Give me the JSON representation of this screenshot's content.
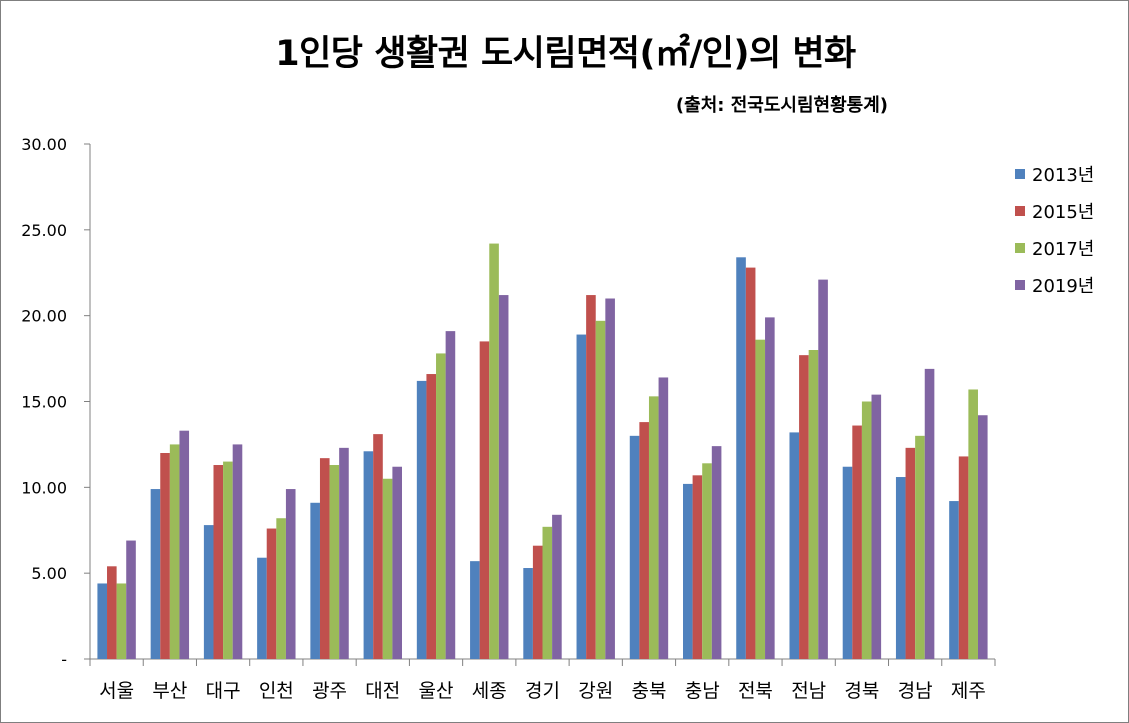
{
  "chart_data": {
    "type": "bar",
    "title": "1인당 생활권 도시림면적(㎡/인)의 변화",
    "subtitle": "(출처: 전국도시림현황통계)",
    "xlabel": "",
    "ylabel": "",
    "ylim": [
      0,
      30
    ],
    "y_ticks": [
      0,
      5,
      10,
      15,
      20,
      25,
      30
    ],
    "y_tick_labels": [
      "-",
      "5.00",
      "10.00",
      "15.00",
      "20.00",
      "25.00",
      "30.00"
    ],
    "grid": false,
    "legend_position": "right",
    "categories": [
      "서울",
      "부산",
      "대구",
      "인천",
      "광주",
      "대전",
      "울산",
      "세종",
      "경기",
      "강원",
      "충북",
      "충남",
      "전북",
      "전남",
      "경북",
      "경남",
      "제주"
    ],
    "series": [
      {
        "name": "2013년",
        "color": "#4f81bd",
        "values": [
          4.4,
          9.9,
          7.8,
          5.9,
          9.1,
          12.1,
          16.2,
          5.7,
          5.3,
          18.9,
          13.0,
          10.2,
          23.4,
          13.2,
          11.2,
          10.6,
          9.2
        ]
      },
      {
        "name": "2015년",
        "color": "#c0504d",
        "values": [
          5.4,
          12.0,
          11.3,
          7.6,
          11.7,
          13.1,
          16.6,
          18.5,
          6.6,
          21.2,
          13.8,
          10.7,
          22.8,
          17.7,
          13.6,
          12.3,
          11.8
        ]
      },
      {
        "name": "2017년",
        "color": "#9bbb59",
        "values": [
          4.4,
          12.5,
          11.5,
          8.2,
          11.3,
          10.5,
          17.8,
          24.2,
          7.7,
          19.7,
          15.3,
          11.4,
          18.6,
          18.0,
          15.0,
          13.0,
          15.7
        ]
      },
      {
        "name": "2019년",
        "color": "#8064a2",
        "values": [
          6.9,
          13.3,
          12.5,
          9.9,
          12.3,
          11.2,
          19.1,
          21.2,
          8.4,
          21.0,
          16.4,
          12.4,
          19.9,
          22.1,
          15.4,
          16.9,
          14.2
        ]
      }
    ]
  }
}
